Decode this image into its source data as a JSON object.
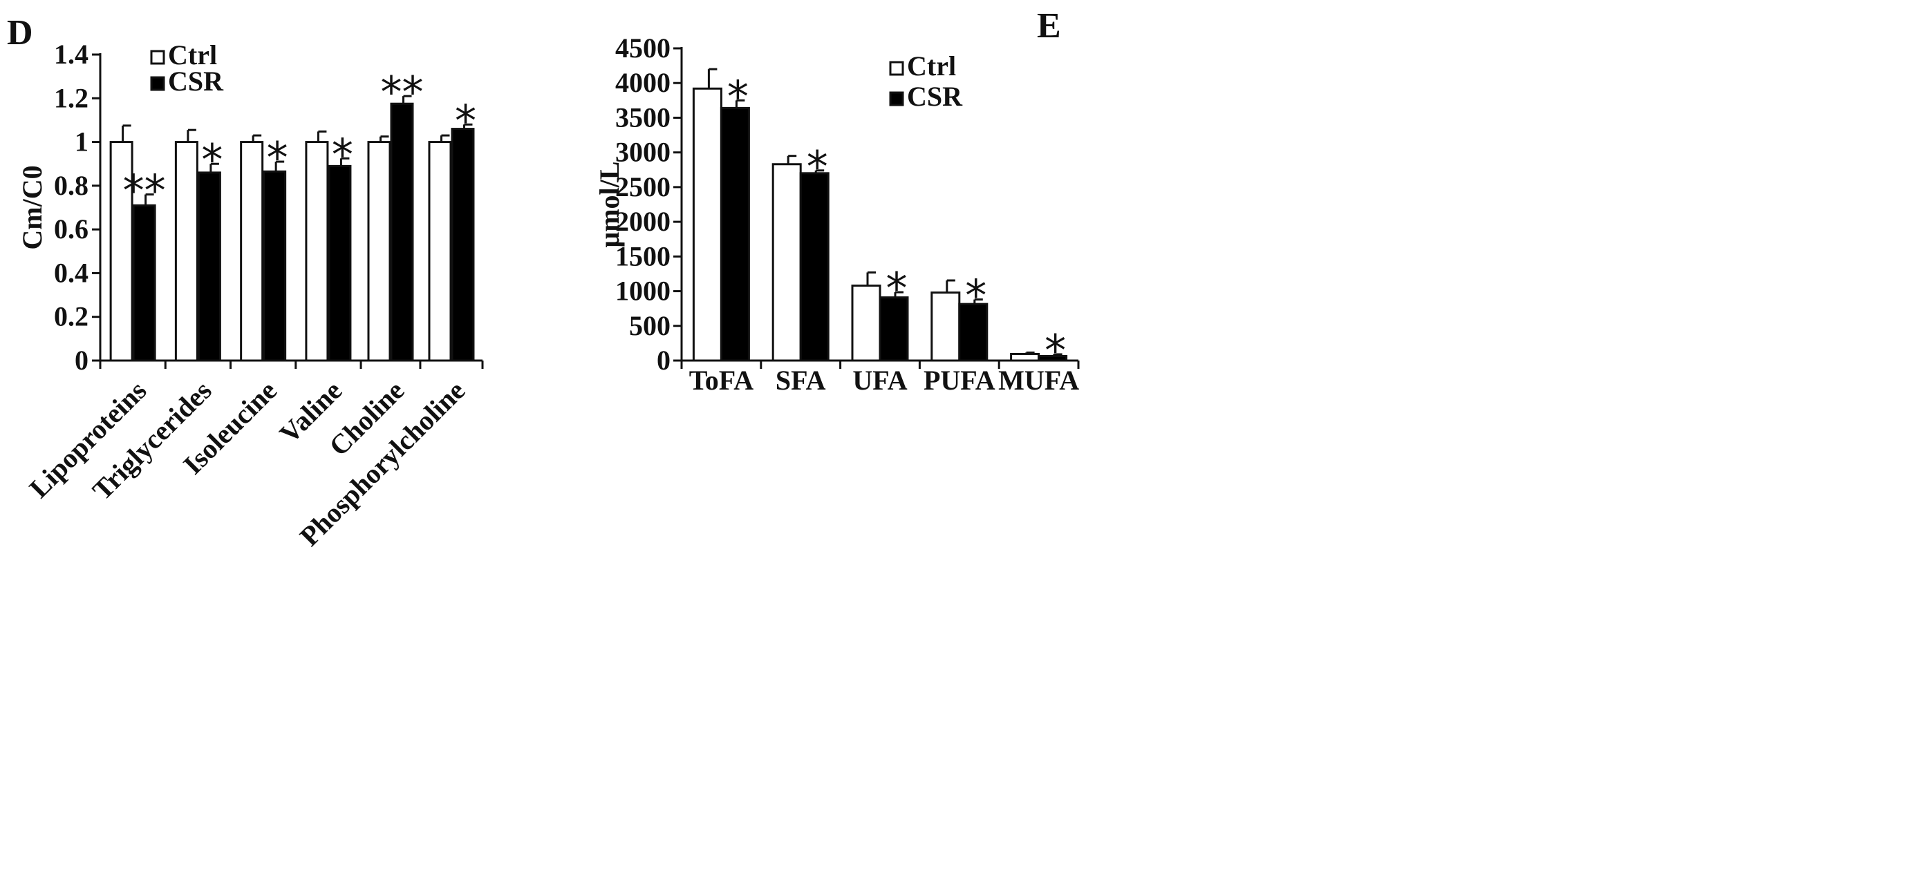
{
  "colors": {
    "ink": "#111111",
    "ctrl_fill": "#ffffff",
    "csr_fill": "#000000",
    "background": "#ffffff"
  },
  "chart_data": [
    {
      "panel": "D",
      "type": "bar",
      "title": "",
      "xlabel": "",
      "ylabel": "Cm/C0",
      "ylim": [
        0,
        1.4
      ],
      "yticks": [
        0,
        0.2,
        0.4,
        0.6,
        0.8,
        1,
        1.2,
        1.4
      ],
      "ytick_labels": [
        "0",
        "0.2",
        "0.4",
        "0.6",
        "0.8",
        "1",
        "1.2",
        "1.4"
      ],
      "categories": [
        "Lipoproteins",
        "Triglycerides",
        "Isoleucine",
        "Valine",
        "Choline",
        "Phosphorylcholine"
      ],
      "legend": {
        "position": "top-left",
        "entries": [
          "Ctrl",
          "CSR"
        ]
      },
      "grid": false,
      "series": [
        {
          "name": "Ctrl",
          "values": [
            1.0,
            1.0,
            1.0,
            1.0,
            1.0,
            1.0
          ],
          "errors": [
            0.075,
            0.055,
            0.03,
            0.048,
            0.025,
            0.03
          ],
          "significance": [
            "",
            "",
            "",
            "",
            "",
            ""
          ]
        },
        {
          "name": "CSR",
          "values": [
            0.71,
            0.86,
            0.865,
            0.89,
            1.175,
            1.06
          ],
          "errors": [
            0.05,
            0.04,
            0.045,
            0.035,
            0.035,
            0.02
          ],
          "significance": [
            "**",
            "*",
            "*",
            "*",
            "**",
            "*"
          ]
        }
      ]
    },
    {
      "panel": "E",
      "type": "bar",
      "title": "",
      "xlabel": "",
      "ylabel": "μmol/L",
      "ylim": [
        0,
        4500
      ],
      "yticks": [
        0,
        500,
        1000,
        1500,
        2000,
        2500,
        3000,
        3500,
        4000,
        4500
      ],
      "ytick_labels": [
        "0",
        "500",
        "1000",
        "1500",
        "2000",
        "2500",
        "3000",
        "3500",
        "4000",
        "4500"
      ],
      "categories": [
        "ToFA",
        "SFA",
        "UFA",
        "PUFA",
        "MUFA"
      ],
      "legend": {
        "position": "top-right",
        "entries": [
          "Ctrl",
          "CSR"
        ]
      },
      "grid": false,
      "series": [
        {
          "name": "Ctrl",
          "values": [
            3920,
            2830,
            1080,
            980,
            95
          ],
          "errors": [
            280,
            120,
            190,
            175,
            20
          ],
          "significance": [
            "",
            "",
            "",
            "",
            ""
          ]
        },
        {
          "name": "CSR",
          "values": [
            3640,
            2700,
            910,
            815,
            65
          ],
          "errors": [
            110,
            40,
            75,
            65,
            25
          ],
          "significance": [
            "*",
            "*",
            "*",
            "*",
            "*"
          ]
        }
      ]
    }
  ]
}
